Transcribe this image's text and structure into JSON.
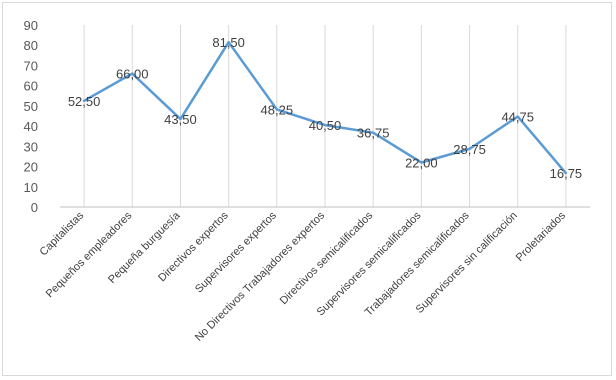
{
  "chart_data": {
    "type": "line",
    "title": "",
    "xlabel": "",
    "ylabel": "",
    "ylim": [
      0,
      90
    ],
    "ytick_step": 10,
    "y_ticks": [
      "0",
      "10",
      "20",
      "30",
      "40",
      "50",
      "60",
      "70",
      "80",
      "90"
    ],
    "grid": "vertical",
    "legend": "none",
    "categories": [
      "Capitalistas",
      "Pequeños  empleadores",
      "Pequeña  burguesía",
      "Directivos  expertos",
      "Supervisores  expertos",
      "No Directivos  Trabajadores  expertos",
      "Directivos  semicalificados",
      "Supervisores  semicalificados",
      "Trabajadores  semicalificados",
      "Supervisores  sin calificación",
      "Proletariados"
    ],
    "series": [
      {
        "values": [
          52.5,
          66.0,
          43.5,
          81.5,
          48.25,
          40.5,
          36.75,
          22.0,
          28.75,
          44.75,
          16.75
        ],
        "labels": [
          "52,50",
          "66,00",
          "43,50",
          "81,50",
          "48,25",
          "40,50",
          "36,75",
          "22,00",
          "28,75",
          "44,75",
          "16,75"
        ],
        "color": "#5b9bd5"
      }
    ],
    "grid_color": "#d9d9d9",
    "axis_color": "#bfbfbf"
  }
}
